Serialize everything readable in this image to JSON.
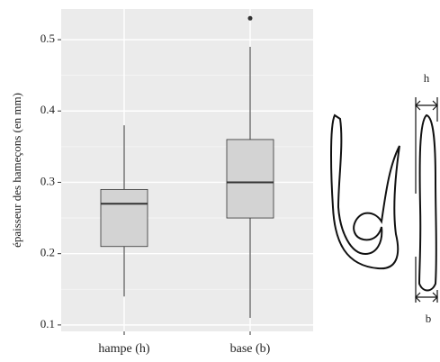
{
  "chart_data": {
    "type": "boxplot",
    "y_label": "épaisseur des hameçons (en mm)",
    "categories": [
      "hampe (h)",
      "base (b)"
    ],
    "boxes": [
      {
        "min": 0.14,
        "q1": 0.21,
        "median": 0.27,
        "q3": 0.29,
        "max": 0.38,
        "outliers": []
      },
      {
        "min": 0.11,
        "q1": 0.25,
        "median": 0.3,
        "q3": 0.36,
        "max": 0.49,
        "outliers": [
          0.53
        ]
      }
    ],
    "color": "#d3d3d3",
    "ylim": [
      0.091,
      0.543
    ],
    "yticks": [
      0.1,
      0.2,
      0.3,
      0.4,
      0.5
    ],
    "minor_yticks": [
      0.15,
      0.25,
      0.35,
      0.45
    ],
    "grid": true,
    "annotations": [
      "h",
      "b"
    ]
  }
}
